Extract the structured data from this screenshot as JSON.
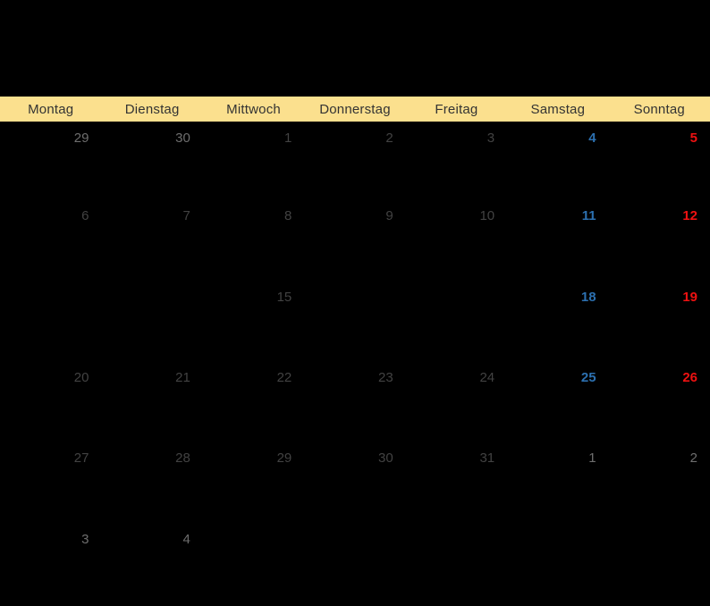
{
  "header": {
    "days": [
      "Montag",
      "Dienstag",
      "Mittwoch",
      "Donnerstag",
      "Freitag",
      "Samstag",
      "Sonntag"
    ]
  },
  "calendar": {
    "rows": [
      [
        {
          "d": "29",
          "t": "adj"
        },
        {
          "d": "30",
          "t": "adj"
        },
        {
          "d": "1",
          "t": "wd"
        },
        {
          "d": "2",
          "t": "wd"
        },
        {
          "d": "3",
          "t": "wd"
        },
        {
          "d": "4",
          "t": "sat"
        },
        {
          "d": "5",
          "t": "sun"
        }
      ],
      [
        {
          "d": "6",
          "t": "wd"
        },
        {
          "d": "7",
          "t": "wd"
        },
        {
          "d": "8",
          "t": "wd"
        },
        {
          "d": "9",
          "t": "wd"
        },
        {
          "d": "10",
          "t": "wd"
        },
        {
          "d": "11",
          "t": "sat"
        },
        {
          "d": "12",
          "t": "sun"
        }
      ],
      [
        {
          "d": "",
          "t": "empty"
        },
        {
          "d": "",
          "t": "empty"
        },
        {
          "d": "15",
          "t": "wd"
        },
        {
          "d": "",
          "t": "empty"
        },
        {
          "d": "",
          "t": "empty"
        },
        {
          "d": "18",
          "t": "sat"
        },
        {
          "d": "19",
          "t": "sun"
        }
      ],
      [
        {
          "d": "20",
          "t": "wd"
        },
        {
          "d": "21",
          "t": "wd"
        },
        {
          "d": "22",
          "t": "wd"
        },
        {
          "d": "23",
          "t": "wd"
        },
        {
          "d": "24",
          "t": "wd"
        },
        {
          "d": "25",
          "t": "sat"
        },
        {
          "d": "26",
          "t": "sun"
        }
      ],
      [
        {
          "d": "27",
          "t": "wd"
        },
        {
          "d": "28",
          "t": "wd"
        },
        {
          "d": "29",
          "t": "wd"
        },
        {
          "d": "30",
          "t": "wd"
        },
        {
          "d": "31",
          "t": "wd"
        },
        {
          "d": "1",
          "t": "adj"
        },
        {
          "d": "2",
          "t": "adj"
        }
      ],
      [
        {
          "d": "3",
          "t": "adj"
        },
        {
          "d": "4",
          "t": "adj"
        },
        {
          "d": "",
          "t": "empty"
        },
        {
          "d": "",
          "t": "empty"
        },
        {
          "d": "",
          "t": "empty"
        },
        {
          "d": "",
          "t": "empty"
        },
        {
          "d": "",
          "t": "empty"
        }
      ]
    ]
  },
  "colors": {
    "background": "#000000",
    "header_bg": "#fbe08e",
    "header_text": "#333333",
    "weekday_number": "#424242",
    "adjacent_month_number": "#6e6e6e",
    "saturday_number": "#2c70b0",
    "sunday_number": "#ee1111"
  }
}
